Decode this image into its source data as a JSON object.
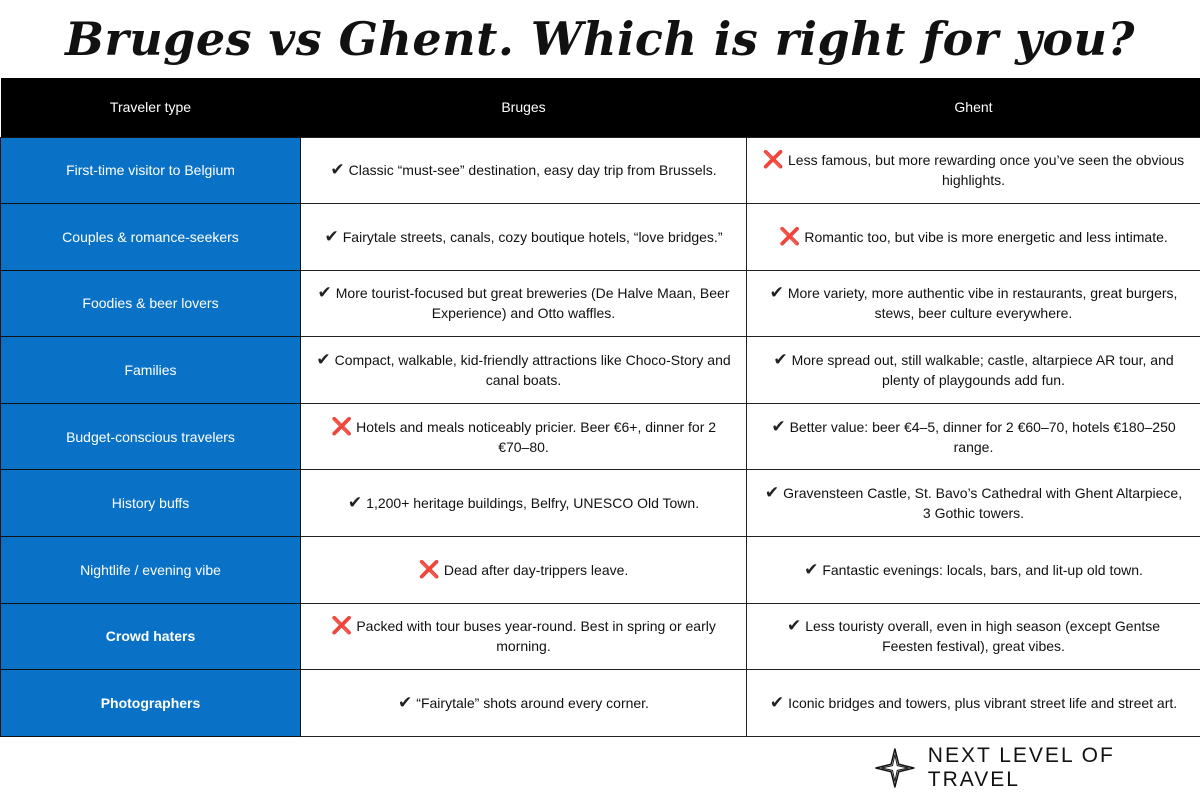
{
  "title": "Bruges vs Ghent. Which is right for you?",
  "headers": [
    "Traveler type",
    "Bruges",
    "Ghent"
  ],
  "colors": {
    "accent": "#0a72c6",
    "header_bg": "#000000",
    "cross": "#d9263a"
  },
  "rows": [
    {
      "type": "First-time visitor to Belgium",
      "bold": false,
      "bruges": {
        "mark": "✔",
        "text": "Classic “must-see” destination, easy day trip from Brussels."
      },
      "ghent": {
        "mark": "❌",
        "text": "Less famous, but more rewarding once you’ve seen the obvious highlights."
      }
    },
    {
      "type": "Couples & romance-seekers",
      "bold": false,
      "bruges": {
        "mark": "✔",
        "text": "Fairytale streets, canals, cozy boutique hotels, “love bridges.”"
      },
      "ghent": {
        "mark": "❌",
        "text": "Romantic too, but vibe is more energetic and less intimate."
      }
    },
    {
      "type": "Foodies & beer lovers",
      "bold": false,
      "bruges": {
        "mark": "✔",
        "text": "More tourist-focused but great breweries (De Halve Maan, Beer Experience) and Otto waffles."
      },
      "ghent": {
        "mark": "✔",
        "text": "More variety, more authentic vibe in restaurants, great burgers, stews, beer culture everywhere."
      }
    },
    {
      "type": "Families",
      "bold": false,
      "bruges": {
        "mark": "✔",
        "text": "Compact, walkable, kid-friendly attractions like Choco-Story and canal boats."
      },
      "ghent": {
        "mark": "✔",
        "text": "More spread out, still walkable; castle, altarpiece AR tour, and plenty of playgounds add fun."
      }
    },
    {
      "type": "Budget-conscious travelers",
      "bold": false,
      "bruges": {
        "mark": "❌",
        "text": "Hotels and meals noticeably pricier. Beer €6+, dinner for 2 €70–80."
      },
      "ghent": {
        "mark": "✔",
        "text": "Better value: beer €4–5, dinner for 2 €60–70, hotels €180–250 range."
      }
    },
    {
      "type": "History buffs",
      "bold": false,
      "bruges": {
        "mark": "✔",
        "text": "1,200+ heritage buildings, Belfry, UNESCO Old Town."
      },
      "ghent": {
        "mark": "✔",
        "text": "Gravensteen Castle, St. Bavo’s Cathedral with Ghent Altarpiece, 3 Gothic towers."
      }
    },
    {
      "type": "Nightlife / evening vibe",
      "bold": false,
      "bruges": {
        "mark": "❌",
        "text": "Dead after day-trippers leave."
      },
      "ghent": {
        "mark": "✔",
        "text": "Fantastic evenings: locals, bars, and lit-up old town."
      }
    },
    {
      "type": "Crowd haters",
      "bold": true,
      "bruges": {
        "mark": "❌",
        "text": "Packed with tour buses year-round. Best in spring or early morning."
      },
      "ghent": {
        "mark": "✔",
        "text": "Less touristy overall, even in high season (except Gentse Feesten festival), great vibes."
      }
    },
    {
      "type": "Photographers",
      "bold": true,
      "bruges": {
        "mark": "✔",
        "text": "“Fairytale” shots around every corner."
      },
      "ghent": {
        "mark": "✔",
        "text": "Iconic bridges and towers, plus vibrant street life and street art."
      }
    }
  ],
  "brand": {
    "name": "NEXT LEVEL OF TRAVEL",
    "icon": "compass-star-icon"
  }
}
